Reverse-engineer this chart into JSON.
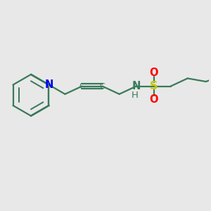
{
  "bg_color": "#e8e8e8",
  "bond_color": "#3a7a5a",
  "N_color": "#0000ee",
  "NH_color": "#3a7a5a",
  "S_color": "#c8c800",
  "O_color": "#ff0000",
  "line_width": 1.6,
  "font_size": 8.5,
  "figsize": [
    3.0,
    3.0
  ],
  "dpi": 100,
  "xlim": [
    0,
    10
  ],
  "ylim": [
    0,
    10
  ]
}
